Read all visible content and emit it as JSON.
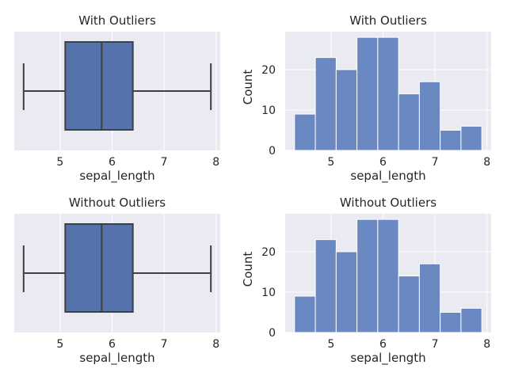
{
  "chart_data": [
    {
      "type": "box",
      "title": "With Outliers",
      "xlabel": "sepal_length",
      "ylabel": "",
      "xlim": [
        4.12,
        8.08
      ],
      "xticks": [
        "5",
        "6",
        "7",
        "8"
      ],
      "xtick_values": [
        5,
        6,
        7,
        8
      ],
      "stats": {
        "whisker_low": 4.3,
        "q1": 5.1,
        "median": 5.8,
        "q3": 6.4,
        "whisker_high": 7.9
      },
      "box_color": "#5572aa",
      "grid": true
    },
    {
      "type": "bar",
      "subtype": "histogram",
      "title": "With Outliers",
      "xlabel": "sepal_length",
      "ylabel": "Count",
      "xlim": [
        4.12,
        8.08
      ],
      "ylim": [
        0,
        29.4
      ],
      "xticks": [
        "5",
        "6",
        "7",
        "8"
      ],
      "xtick_values": [
        5,
        6,
        7,
        8
      ],
      "yticks": [
        "0",
        "10",
        "20"
      ],
      "ytick_values": [
        0,
        10,
        20
      ],
      "bin_edges": [
        4.3,
        4.7,
        5.1,
        5.5,
        5.9,
        6.3,
        6.7,
        7.1,
        7.5,
        7.9
      ],
      "counts": [
        9,
        23,
        20,
        28,
        28,
        14,
        17,
        5,
        6
      ],
      "bar_color": "#6a88c2",
      "grid": true
    },
    {
      "type": "box",
      "title": "Without Outliers",
      "xlabel": "sepal_length",
      "ylabel": "",
      "xlim": [
        4.12,
        8.08
      ],
      "xticks": [
        "5",
        "6",
        "7",
        "8"
      ],
      "xtick_values": [
        5,
        6,
        7,
        8
      ],
      "stats": {
        "whisker_low": 4.3,
        "q1": 5.1,
        "median": 5.8,
        "q3": 6.4,
        "whisker_high": 7.9
      },
      "box_color": "#5572aa",
      "grid": true
    },
    {
      "type": "bar",
      "subtype": "histogram",
      "title": "Without Outliers",
      "xlabel": "sepal_length",
      "ylabel": "Count",
      "xlim": [
        4.12,
        8.08
      ],
      "ylim": [
        0,
        29.4
      ],
      "xticks": [
        "5",
        "6",
        "7",
        "8"
      ],
      "xtick_values": [
        5,
        6,
        7,
        8
      ],
      "yticks": [
        "0",
        "10",
        "20"
      ],
      "ytick_values": [
        0,
        10,
        20
      ],
      "bin_edges": [
        4.3,
        4.7,
        5.1,
        5.5,
        5.9,
        6.3,
        6.7,
        7.1,
        7.5,
        7.9
      ],
      "counts": [
        9,
        23,
        20,
        28,
        28,
        14,
        17,
        5,
        6
      ],
      "bar_color": "#6a88c2",
      "grid": true
    }
  ],
  "style": {
    "axes_background": "#eaeaf2",
    "grid_color": "#ffffff",
    "line_color": "#404040"
  }
}
